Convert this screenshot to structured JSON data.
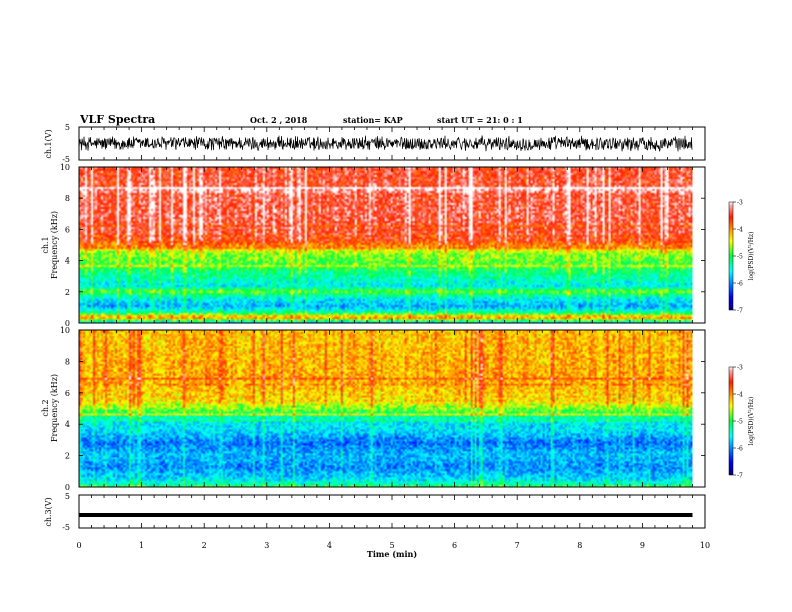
{
  "header": {
    "title": "VLF Spectra",
    "date": "Oct. 2 , 2018",
    "station": "station= KAP",
    "start": "start  UT =  21: 0  : 1"
  },
  "chart_data": [
    {
      "type": "line",
      "name": "ch1-waveform",
      "ylabel": "ch.1(V)",
      "yticks": [
        "5",
        "-5"
      ],
      "ylim": [
        -5,
        5
      ],
      "xlim": [
        0,
        10
      ],
      "description_range_v": [
        -3,
        3
      ]
    },
    {
      "type": "heatmap",
      "name": "ch1-spectrogram",
      "ylabel": "ch.1\nFrequency (kHz)",
      "ylabel_line1": "ch.1",
      "ylabel_line2": "Frequency (kHz)",
      "yticks": [
        "0",
        "2",
        "4",
        "6",
        "8",
        "10"
      ],
      "ylim": [
        0,
        10
      ],
      "xlim": [
        0,
        10
      ],
      "data_extent_min": 9.8,
      "color_scale": {
        "label": "log(PSD)(V²/Hz)",
        "ticks": [
          "-3",
          "-4",
          "-5",
          "-6",
          "-7"
        ],
        "range": [
          -7,
          -3
        ]
      },
      "profile_log_psd": [
        {
          "f": 0.0,
          "v": -5.5
        },
        {
          "f": 0.3,
          "v": -3.9
        },
        {
          "f": 0.6,
          "v": -5.2
        },
        {
          "f": 1.0,
          "v": -5.9
        },
        {
          "f": 1.6,
          "v": -5.5
        },
        {
          "f": 2.0,
          "v": -4.8
        },
        {
          "f": 2.3,
          "v": -5.6
        },
        {
          "f": 3.0,
          "v": -5.3
        },
        {
          "f": 3.7,
          "v": -4.9
        },
        {
          "f": 4.5,
          "v": -4.7
        },
        {
          "f": 4.9,
          "v": -4.0
        },
        {
          "f": 5.5,
          "v": -3.5
        },
        {
          "f": 7.0,
          "v": -3.4
        },
        {
          "f": 10.0,
          "v": -3.5
        }
      ]
    },
    {
      "type": "heatmap",
      "name": "ch2-spectrogram",
      "ylabel_line1": "ch.2",
      "ylabel_line2": "Frequency (kHz)",
      "yticks": [
        "0",
        "2",
        "4",
        "6",
        "8",
        "10"
      ],
      "ylim": [
        0,
        10
      ],
      "xlim": [
        0,
        10
      ],
      "data_extent_min": 9.8,
      "color_scale": {
        "label": "log(PSD)(V²/Hz)",
        "ticks": [
          "-3",
          "-4",
          "-5",
          "-6",
          "-7"
        ],
        "range": [
          -7,
          -3
        ]
      },
      "profile_log_psd": [
        {
          "f": 0.0,
          "v": -5.4
        },
        {
          "f": 0.5,
          "v": -5.7
        },
        {
          "f": 1.2,
          "v": -6.0
        },
        {
          "f": 2.0,
          "v": -5.8
        },
        {
          "f": 2.8,
          "v": -6.1
        },
        {
          "f": 3.5,
          "v": -5.7
        },
        {
          "f": 4.2,
          "v": -5.6
        },
        {
          "f": 4.8,
          "v": -4.9
        },
        {
          "f": 5.5,
          "v": -4.3
        },
        {
          "f": 7.0,
          "v": -4.1
        },
        {
          "f": 10.0,
          "v": -4.2
        }
      ]
    },
    {
      "type": "line",
      "name": "ch3-waveform",
      "ylabel": "ch.3(V)",
      "yticks": [
        "5",
        "-5"
      ],
      "ylim": [
        -5,
        5
      ],
      "xlim": [
        0,
        10
      ],
      "level_v": -1.3
    }
  ],
  "xaxis": {
    "label": "Time (min)",
    "ticks": [
      "0",
      "1",
      "2",
      "3",
      "4",
      "5",
      "6",
      "7",
      "8",
      "9",
      "10"
    ],
    "range": [
      0,
      10
    ]
  },
  "colors": {
    "axis": "#000000",
    "background": "#ffffff"
  }
}
